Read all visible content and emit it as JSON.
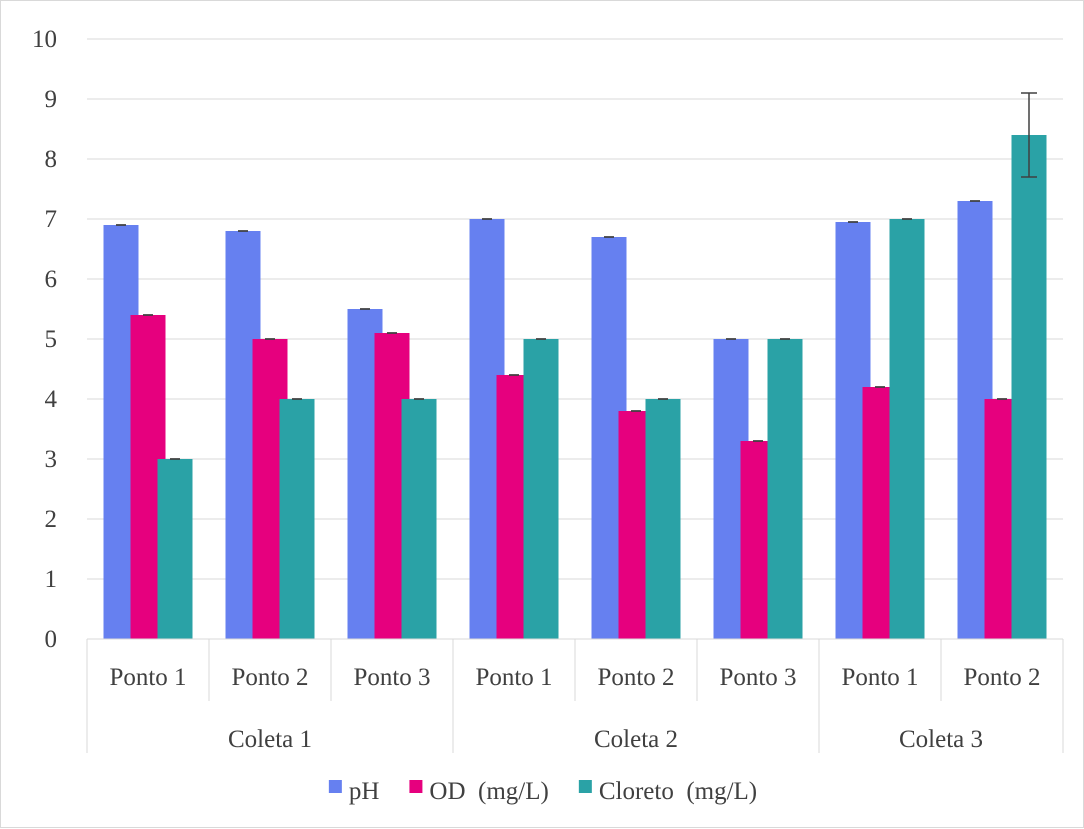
{
  "chart_data": {
    "type": "bar",
    "title": "",
    "xlabel": "",
    "ylabel": "",
    "ylim": [
      0,
      10
    ],
    "yticks": [
      "0",
      "1",
      "2",
      "3",
      "4",
      "5",
      "6",
      "7",
      "8",
      "9",
      "10"
    ],
    "grid": true,
    "legend_position": "bottom",
    "groups": [
      {
        "label": "Coleta 1",
        "categories": [
          "Ponto 1",
          "Ponto 2",
          "Ponto 3"
        ]
      },
      {
        "label": "Coleta 2",
        "categories": [
          "Ponto 1",
          "Ponto 2",
          "Ponto 3"
        ]
      },
      {
        "label": "Coleta 3",
        "categories": [
          "Ponto 1",
          "Ponto 2"
        ]
      }
    ],
    "series": [
      {
        "name": "pH",
        "color": "#6680f0",
        "values": [
          6.9,
          6.8,
          5.5,
          7.0,
          6.7,
          5.0,
          6.95,
          7.3
        ],
        "errors": [
          0,
          0,
          0,
          0,
          0,
          0,
          0,
          0
        ]
      },
      {
        "name": "OD  (mg/L)",
        "color": "#e6007e",
        "values": [
          5.4,
          5.0,
          5.1,
          4.4,
          3.8,
          3.3,
          4.2,
          4.0
        ],
        "errors": [
          0,
          0,
          0,
          0,
          0,
          0,
          0,
          0
        ]
      },
      {
        "name": "Cloreto  (mg/L)",
        "color": "#2aa2a6",
        "values": [
          3.0,
          4.0,
          4.0,
          5.0,
          4.0,
          5.0,
          7.0,
          8.4
        ],
        "errors": [
          0,
          0,
          0,
          0,
          0,
          0,
          0,
          0.7
        ]
      }
    ]
  }
}
